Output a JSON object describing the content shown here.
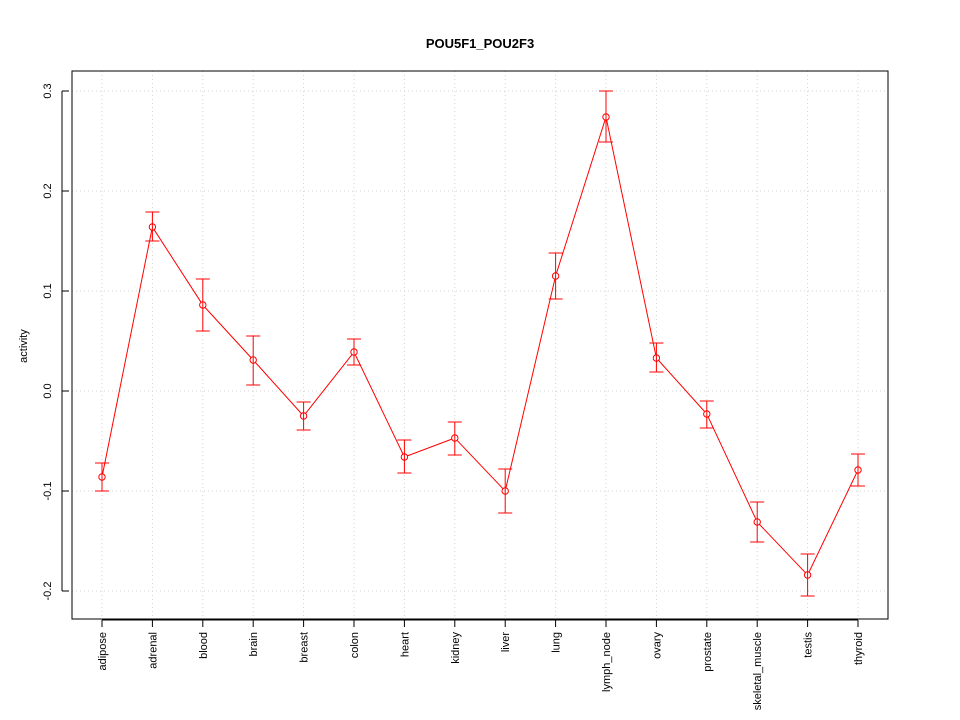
{
  "chart_data": {
    "type": "line",
    "title": "POU5F1_POU2F3",
    "xlabel": "",
    "ylabel": "activity",
    "ylim": [
      -0.228,
      0.32
    ],
    "yticks": [
      -0.2,
      -0.1,
      0.0,
      0.1,
      0.2,
      0.3
    ],
    "ytick_labels": [
      "-0.2",
      "-0.1",
      "0.0",
      "0.1",
      "0.2",
      "0.3"
    ],
    "grid": true,
    "color": "#ff0000",
    "categories": [
      "adipose",
      "adrenal",
      "blood",
      "brain",
      "breast",
      "colon",
      "heart",
      "kidney",
      "liver",
      "lung",
      "lymph_node",
      "ovary",
      "prostate",
      "skeletal_muscle",
      "testis",
      "thyroid"
    ],
    "values": [
      -0.086,
      0.164,
      0.086,
      0.031,
      -0.025,
      0.039,
      -0.066,
      -0.047,
      -0.1,
      0.115,
      0.274,
      0.033,
      -0.023,
      -0.131,
      -0.184,
      -0.079
    ],
    "error_low": [
      -0.1,
      0.15,
      0.06,
      0.006,
      -0.039,
      0.026,
      -0.082,
      -0.064,
      -0.122,
      0.092,
      0.249,
      0.019,
      -0.037,
      -0.151,
      -0.205,
      -0.095
    ],
    "error_high": [
      -0.072,
      0.179,
      0.112,
      0.055,
      -0.011,
      0.052,
      -0.049,
      -0.031,
      -0.078,
      0.138,
      0.3,
      0.048,
      -0.01,
      -0.111,
      -0.163,
      -0.063
    ]
  }
}
